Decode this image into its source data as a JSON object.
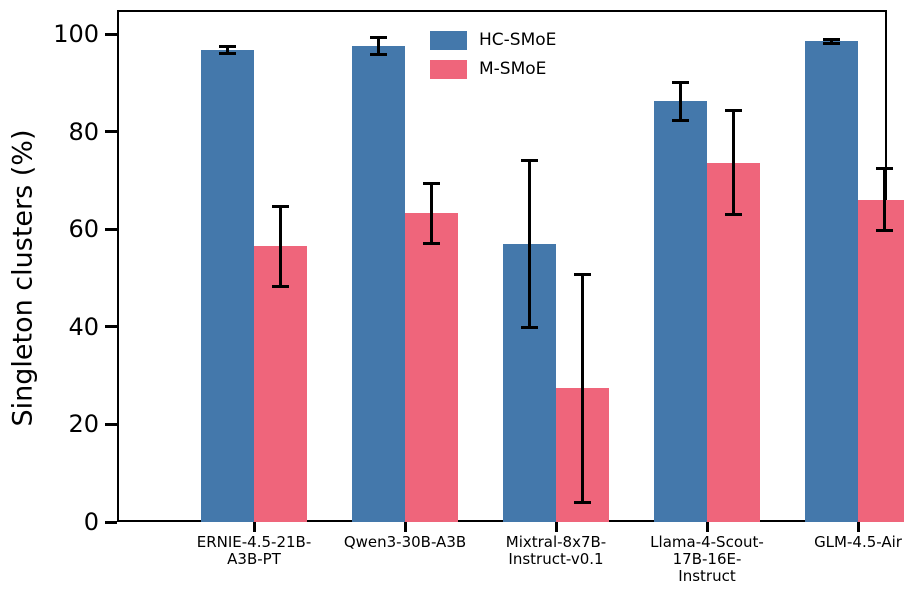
{
  "chart_data": {
    "type": "bar",
    "title": "",
    "xlabel": "",
    "ylabel": "Singleton clusters (%)",
    "ylim": [
      0,
      105
    ],
    "yticks": [
      0,
      20,
      40,
      60,
      80,
      100
    ],
    "grid": false,
    "legend_position": "upper center, inside plot, no frame",
    "axis_color": "#000000",
    "error_bar_color": "#000000",
    "categories": [
      {
        "label": "ERNIE-4.5-21B-A3B-PT",
        "lines": [
          "ERNIE-4.5-21B-",
          "A3B-PT"
        ]
      },
      {
        "label": "Qwen3-30B-A3B",
        "lines": [
          "Qwen3-30B-A3B"
        ]
      },
      {
        "label": "Mixtral-8x7B-Instruct-v0.1",
        "lines": [
          "Mixtral-8x7B-",
          "Instruct-v0.1"
        ]
      },
      {
        "label": "Llama-4-Scout-17B-16E-Instruct",
        "lines": [
          "Llama-4-Scout-",
          "17B-16E-",
          "Instruct"
        ]
      },
      {
        "label": "GLM-4.5-Air",
        "lines": [
          "GLM-4.5-Air"
        ]
      }
    ],
    "series": [
      {
        "name": "HC-SMoE",
        "color": "#4478AB",
        "values": [
          96.8,
          97.6,
          57.0,
          86.3,
          98.6
        ],
        "errors": [
          0.7,
          1.8,
          17.2,
          3.9,
          0.4
        ]
      },
      {
        "name": "M-SMoE",
        "color": "#EF657B",
        "values": [
          56.5,
          63.3,
          27.4,
          73.7,
          66.1
        ],
        "errors": [
          8.2,
          6.2,
          23.4,
          10.7,
          6.3
        ]
      }
    ]
  }
}
